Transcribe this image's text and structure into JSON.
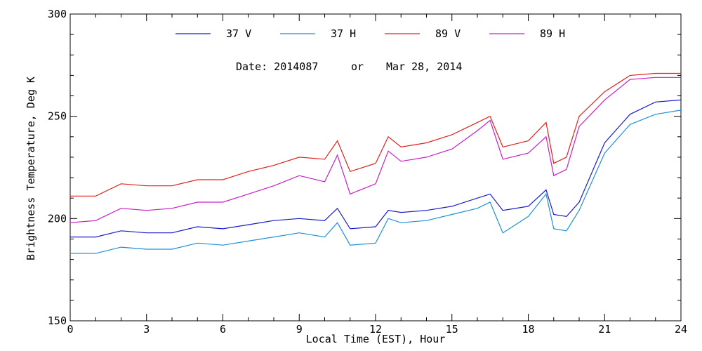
{
  "chart_data": {
    "type": "line",
    "title": "",
    "xlabel": "Local Time (EST), Hour",
    "ylabel": "Brightness Temperature, Deg K",
    "xlim": [
      0,
      24
    ],
    "ylim": [
      150,
      300
    ],
    "xticks": [
      0,
      3,
      6,
      9,
      12,
      15,
      18,
      21,
      24
    ],
    "yticks": [
      150,
      200,
      250,
      300
    ],
    "grid": false,
    "legend_position": "top",
    "annotation": {
      "date_label": "Date: 2014087",
      "or_label": "or",
      "date_text": "Mar 28, 2014"
    },
    "x": [
      0,
      1,
      2,
      3,
      4,
      5,
      6,
      7,
      8,
      9,
      10,
      10.5,
      11,
      12,
      12.5,
      13,
      14,
      15,
      16,
      16.5,
      17,
      18,
      18.7,
      19,
      19.5,
      20,
      21,
      22,
      23,
      24
    ],
    "series": [
      {
        "name": "37 V",
        "color": "#1a1acd",
        "values": [
          191,
          191,
          194,
          193,
          193,
          196,
          195,
          197,
          199,
          200,
          199,
          205,
          195,
          196,
          204,
          203,
          204,
          206,
          210,
          212,
          204,
          206,
          214,
          202,
          201,
          208,
          237,
          251,
          257,
          258
        ]
      },
      {
        "name": "37 H",
        "color": "#1e90d6",
        "values": [
          183,
          183,
          186,
          185,
          185,
          188,
          187,
          189,
          191,
          193,
          191,
          198,
          187,
          188,
          200,
          198,
          199,
          202,
          205,
          208,
          193,
          201,
          212,
          195,
          194,
          204,
          232,
          246,
          251,
          253
        ]
      },
      {
        "name": "89 V",
        "color": "#e0201c",
        "values": [
          211,
          211,
          217,
          216,
          216,
          219,
          219,
          223,
          226,
          230,
          229,
          238,
          223,
          227,
          240,
          235,
          237,
          241,
          247,
          250,
          235,
          238,
          247,
          227,
          230,
          250,
          262,
          270,
          271,
          271
        ]
      },
      {
        "name": "89 H",
        "color": "#c71ec7",
        "values": [
          198,
          199,
          205,
          204,
          205,
          208,
          208,
          212,
          216,
          221,
          218,
          231,
          212,
          217,
          233,
          228,
          230,
          234,
          243,
          248,
          229,
          232,
          240,
          221,
          224,
          245,
          258,
          268,
          269,
          269
        ]
      }
    ]
  }
}
